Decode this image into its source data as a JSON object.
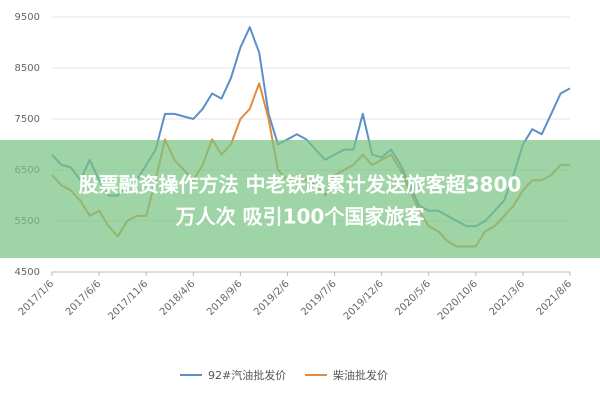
{
  "chart_data": {
    "type": "line",
    "categories": [
      "2017/1/6",
      null,
      null,
      null,
      null,
      "2017/6/6",
      null,
      null,
      null,
      null,
      "2017/11/6",
      null,
      null,
      null,
      null,
      "2018/4/6",
      null,
      null,
      null,
      null,
      "2018/9/6",
      null,
      null,
      null,
      null,
      "2019/2/6",
      null,
      null,
      null,
      null,
      "2019/7/6",
      null,
      null,
      null,
      null,
      "2019/12/6",
      null,
      null,
      null,
      null,
      "2020/5/6",
      null,
      null,
      null,
      null,
      "2020/10/6",
      null,
      null,
      null,
      null,
      "2021/3/6",
      null,
      null,
      null,
      null,
      "2021/8/6"
    ],
    "series": [
      {
        "name": "92#汽油批发价",
        "color": "#5b8fca",
        "values": [
          6800,
          6600,
          6550,
          6300,
          6700,
          6300,
          6000,
          6000,
          6200,
          6300,
          6600,
          6900,
          7600,
          7600,
          7550,
          7500,
          7700,
          8000,
          7900,
          8300,
          8900,
          9300,
          8800,
          7600,
          7000,
          7100,
          7200,
          7100,
          6900,
          6700,
          6800,
          6900,
          6900,
          7600,
          6800,
          6750,
          6900,
          6600,
          6200,
          5800,
          5700,
          5700,
          5600,
          5500,
          5400,
          5400,
          5500,
          5700,
          5900,
          6400,
          7000,
          7300,
          7200,
          7600,
          8000,
          8100
        ]
      },
      {
        "name": "柴油批发价",
        "color": "#e08b3e",
        "values": [
          6400,
          6200,
          6100,
          5900,
          5600,
          5700,
          5400,
          5200,
          5500,
          5600,
          5600,
          6300,
          7100,
          6700,
          6500,
          6300,
          6600,
          7100,
          6800,
          7000,
          7500,
          7700,
          8200,
          7500,
          6500,
          6300,
          6400,
          6300,
          6200,
          6000,
          6400,
          6500,
          6600,
          6800,
          6600,
          6700,
          6800,
          6500,
          6100,
          5700,
          5400,
          5300,
          5100,
          5000,
          5000,
          5000,
          5300,
          5400,
          5600,
          5800,
          6100,
          6300,
          6300,
          6400,
          6600,
          6600
        ]
      }
    ],
    "ylim": [
      4500,
      9500
    ],
    "yticks": [
      4500,
      5500,
      6500,
      7500,
      8500,
      9500
    ],
    "grid": true,
    "legend": "bottom",
    "annotation": [
      "股票融资操作方法 中老铁路累计发送旅客超3800",
      "万人次 吸引100个国家旅客"
    ]
  }
}
